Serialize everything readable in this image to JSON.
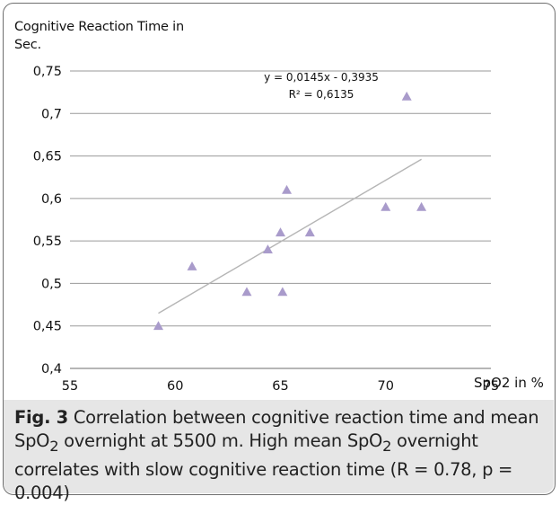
{
  "chart_data": {
    "type": "scatter",
    "ylabel": "Cognitive Reaction Time in\nSec.",
    "xlabel": "SpO2 in %",
    "xlim": [
      55,
      75
    ],
    "ylim": [
      0.4,
      0.75
    ],
    "x_ticks": [
      55,
      60,
      65,
      70,
      75
    ],
    "y_ticks": [
      0.4,
      0.45,
      0.5,
      0.55,
      0.6,
      0.65,
      0.7,
      0.75
    ],
    "x_tick_labels": [
      "55",
      "60",
      "65",
      "70",
      "75"
    ],
    "y_tick_labels": [
      "0,4",
      "0,45",
      "0,5",
      "0,55",
      "0,6",
      "0,65",
      "0,7",
      "0,75"
    ],
    "grid": "horizontal",
    "marker": "triangle",
    "marker_color": "#a99bcb",
    "points": [
      {
        "x": 59.2,
        "y": 0.45
      },
      {
        "x": 60.8,
        "y": 0.52
      },
      {
        "x": 63.4,
        "y": 0.49
      },
      {
        "x": 64.4,
        "y": 0.54
      },
      {
        "x": 65.0,
        "y": 0.56
      },
      {
        "x": 65.1,
        "y": 0.49
      },
      {
        "x": 65.3,
        "y": 0.61
      },
      {
        "x": 66.4,
        "y": 0.56
      },
      {
        "x": 70.0,
        "y": 0.59
      },
      {
        "x": 71.0,
        "y": 0.72
      },
      {
        "x": 71.7,
        "y": 0.59
      }
    ],
    "trendline": {
      "slope": 0.0145,
      "intercept": -0.3935,
      "x_from": 59.2,
      "x_to": 71.7,
      "color": "#b5b5b5",
      "equation": "y = 0,0145x - 0,3935",
      "r_squared": "R² = 0,6135"
    }
  },
  "caption": {
    "fig_label": "Fig. 3",
    "text_1": " Correlation between cognitive reaction time and mean SpO",
    "sub_1": "2",
    "text_2": " overnight at 5500 m. High mean SpO",
    "sub_2": "2",
    "text_3": " overnight correlates with slow cognitive reaction time (R = 0.78, p = 0.004)"
  }
}
